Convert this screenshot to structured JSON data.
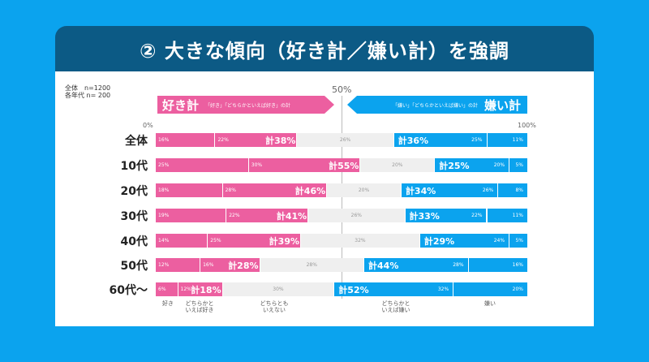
{
  "title": "② 大きな傾向（好き計／嫌い計）を強調",
  "sample_note": {
    "line1": "全体　n=1200",
    "line2": "各年代 n= 200"
  },
  "banners": {
    "like_title": "好き計",
    "like_sub": "「好き」「どちらかといえば好き」の計",
    "dislike_title": "嫌い計",
    "dislike_sub": "「嫌い」「どちらかといえば嫌い」の計"
  },
  "colors": {
    "like": "#ec5fa0",
    "neutral": "#efefef",
    "dislike": "#0ba3ee",
    "header": "#0c5a85"
  },
  "chart_data": {
    "type": "bar",
    "stacked": true,
    "orientation": "horizontal",
    "xlim": [
      0,
      100
    ],
    "axis_labels": {
      "start": "0%",
      "mid": "50%",
      "end": "100%"
    },
    "categories": [
      "全体",
      "10代",
      "20代",
      "30代",
      "40代",
      "50代",
      "60代～"
    ],
    "series": [
      {
        "name": "好き",
        "values": [
          16,
          25,
          18,
          19,
          14,
          12,
          6
        ]
      },
      {
        "name": "どちらかといえば好き",
        "values": [
          22,
          30,
          28,
          22,
          25,
          16,
          12
        ]
      },
      {
        "name": "どちらともいえない",
        "values": [
          26,
          20,
          20,
          26,
          32,
          28,
          30
        ]
      },
      {
        "name": "どちらかといえば嫌い",
        "values": [
          25,
          20,
          26,
          22,
          24,
          28,
          32
        ]
      },
      {
        "name": "嫌い",
        "values": [
          11,
          5,
          8,
          11,
          5,
          16,
          20
        ]
      }
    ],
    "like_totals": [
      38,
      55,
      46,
      41,
      39,
      28,
      18
    ],
    "dislike_totals": [
      36,
      25,
      34,
      33,
      29,
      44,
      52
    ],
    "total_prefix": "計"
  },
  "legend_labels": [
    "好き",
    "どちらかと\nいえば好き",
    "どちらとも\nいえない",
    "どちらかと\nいえば嫌い",
    "嫌い"
  ]
}
